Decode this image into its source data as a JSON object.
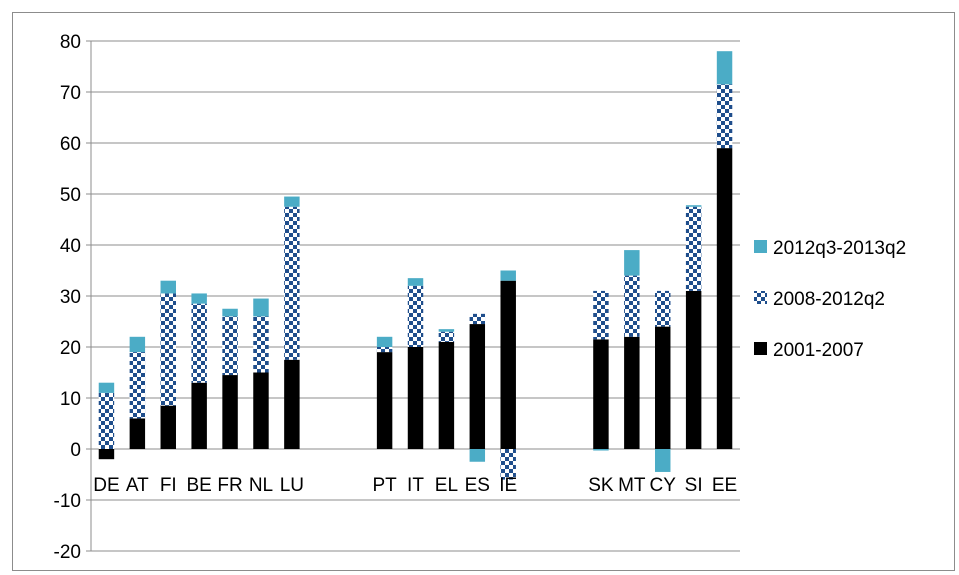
{
  "chart_data": {
    "type": "bar",
    "stacked": true,
    "categories": [
      "DE",
      "AT",
      "FI",
      "BE",
      "FR",
      "NL",
      "LU",
      "",
      "",
      "PT",
      "IT",
      "EL",
      "ES",
      "IE",
      "",
      "",
      "SK",
      "MT",
      "CY",
      "SI",
      "EE"
    ],
    "series": [
      {
        "name": "2001-2007",
        "color": "#000000",
        "pattern": "solid",
        "values": [
          -2,
          6,
          8.5,
          13,
          14.5,
          15,
          17.5,
          null,
          null,
          19,
          20,
          21,
          24.5,
          33,
          null,
          null,
          21.5,
          22,
          24,
          31,
          59
        ]
      },
      {
        "name": "2008-2012q2",
        "color": "#1f4e8c",
        "pattern": "checker",
        "values": [
          11,
          13,
          22,
          15.5,
          11.5,
          11,
          30,
          null,
          null,
          1,
          12,
          2,
          2,
          -6,
          null,
          null,
          9.5,
          12,
          7,
          16.5,
          12.5
        ]
      },
      {
        "name": "2012q3-2013q2",
        "color": "#4bacc6",
        "pattern": "solid",
        "values": [
          2,
          3,
          2.5,
          2,
          1.5,
          3.5,
          2,
          null,
          null,
          2,
          1.5,
          0.5,
          -2.5,
          2,
          null,
          null,
          -0.3,
          5,
          -4.5,
          0.3,
          6.5
        ]
      }
    ],
    "yaxis": {
      "min": -20,
      "max": 80,
      "step": 10,
      "ticks": [
        "-20",
        "-10",
        "0",
        "10",
        "20",
        "30",
        "40",
        "50",
        "60",
        "70",
        "80"
      ]
    },
    "grid": true,
    "legend": "right",
    "title": "",
    "xlabel": "",
    "ylabel": ""
  }
}
